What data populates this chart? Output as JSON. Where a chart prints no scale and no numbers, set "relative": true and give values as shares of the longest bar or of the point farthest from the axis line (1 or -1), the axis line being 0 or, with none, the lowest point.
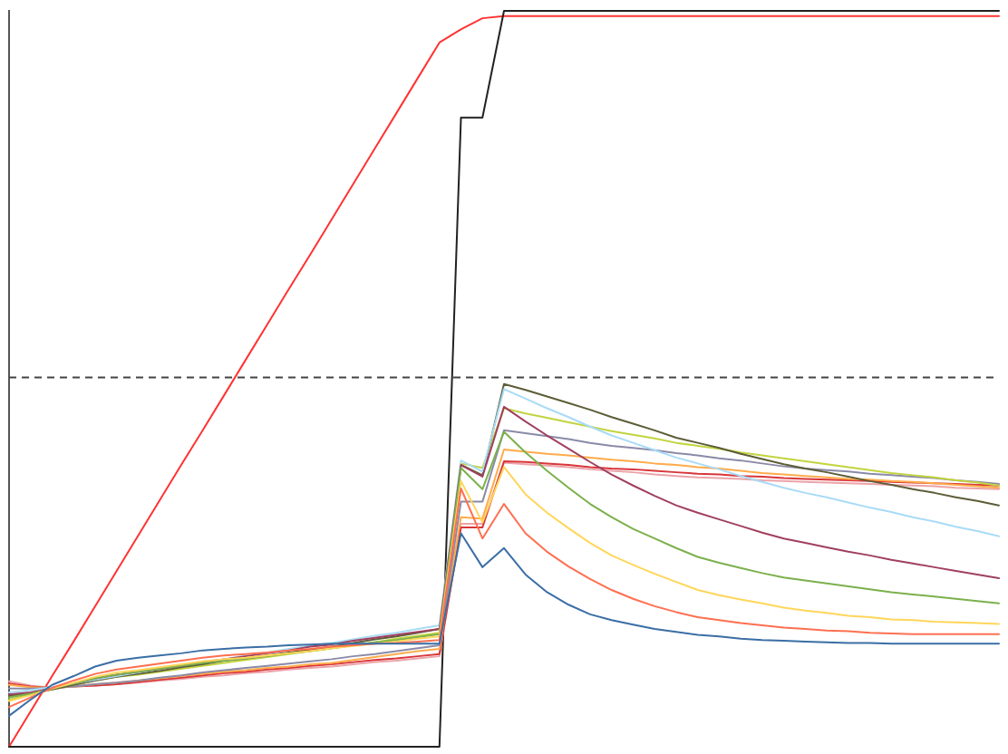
{
  "chart_data": {
    "type": "line",
    "relative": true,
    "legend": false,
    "marker": "none",
    "line_style": "solid",
    "categories": [
      null,
      null,
      null,
      null,
      null,
      null,
      null,
      null,
      null,
      null,
      null,
      null,
      null,
      null,
      null,
      null,
      null,
      null,
      null,
      null,
      null,
      null,
      null,
      null,
      null,
      null,
      null,
      null,
      null,
      null,
      null,
      null,
      null,
      null,
      null,
      null,
      null,
      null,
      null,
      null,
      null,
      null,
      null,
      null,
      null,
      null,
      null
    ],
    "series": [
      {
        "color": "#3a6ea5",
        "values": [
          0.042,
          0.064,
          0.084,
          0.096,
          0.109,
          0.117,
          0.121,
          0.124,
          0.127,
          0.131,
          0.133,
          0.135,
          0.136,
          0.138,
          0.139,
          0.14,
          0.14,
          0.14,
          0.14,
          0.14,
          0.14,
          0.29,
          0.244,
          0.27,
          0.234,
          0.21,
          0.193,
          0.18,
          0.172,
          0.166,
          0.16,
          0.156,
          0.152,
          0.15,
          0.147,
          0.145,
          0.144,
          0.143,
          0.142,
          0.141,
          0.141,
          0.14,
          0.14,
          0.14,
          0.14,
          0.14,
          0.14
        ]
      },
      {
        "color": "#ff6f50",
        "values": [
          0.054,
          0.067,
          0.08,
          0.09,
          0.099,
          0.105,
          0.109,
          0.113,
          0.117,
          0.121,
          0.124,
          0.126,
          0.128,
          0.131,
          0.133,
          0.136,
          0.138,
          0.14,
          0.141,
          0.143,
          0.145,
          0.351,
          0.283,
          0.33,
          0.29,
          0.265,
          0.245,
          0.228,
          0.213,
          0.201,
          0.191,
          0.183,
          0.176,
          0.172,
          0.168,
          0.165,
          0.162,
          0.16,
          0.158,
          0.157,
          0.155,
          0.154,
          0.153,
          0.153,
          0.153,
          0.153,
          0.153
        ]
      },
      {
        "color": "#ffd65a",
        "values": [
          0.062,
          0.07,
          0.079,
          0.087,
          0.095,
          0.101,
          0.104,
          0.108,
          0.112,
          0.116,
          0.119,
          0.121,
          0.124,
          0.127,
          0.13,
          0.134,
          0.137,
          0.14,
          0.143,
          0.147,
          0.15,
          0.361,
          0.305,
          0.38,
          0.343,
          0.318,
          0.297,
          0.277,
          0.26,
          0.247,
          0.235,
          0.224,
          0.213,
          0.206,
          0.2,
          0.195,
          0.189,
          0.185,
          0.182,
          0.178,
          0.176,
          0.173,
          0.172,
          0.17,
          0.169,
          0.168,
          0.167
        ]
      },
      {
        "color": "#7cb04c",
        "values": [
          0.067,
          0.072,
          0.079,
          0.086,
          0.093,
          0.098,
          0.102,
          0.106,
          0.11,
          0.114,
          0.117,
          0.12,
          0.123,
          0.127,
          0.13,
          0.134,
          0.138,
          0.142,
          0.145,
          0.149,
          0.153,
          0.379,
          0.35,
          0.428,
          0.4,
          0.375,
          0.352,
          0.33,
          0.312,
          0.296,
          0.283,
          0.27,
          0.258,
          0.25,
          0.243,
          0.236,
          0.23,
          0.226,
          0.222,
          0.218,
          0.214,
          0.21,
          0.207,
          0.204,
          0.201,
          0.198,
          0.195
        ]
      },
      {
        "color": "#a0405e",
        "values": [
          0.071,
          0.074,
          0.079,
          0.086,
          0.093,
          0.098,
          0.102,
          0.106,
          0.11,
          0.115,
          0.119,
          0.123,
          0.127,
          0.131,
          0.136,
          0.139,
          0.144,
          0.148,
          0.152,
          0.156,
          0.16,
          0.383,
          0.367,
          0.462,
          0.442,
          0.423,
          0.405,
          0.387,
          0.37,
          0.355,
          0.341,
          0.328,
          0.318,
          0.309,
          0.3,
          0.291,
          0.283,
          0.277,
          0.271,
          0.265,
          0.26,
          0.254,
          0.249,
          0.244,
          0.239,
          0.234,
          0.229
        ]
      },
      {
        "color": "#a9dbf7",
        "values": [
          0.074,
          0.077,
          0.081,
          0.086,
          0.091,
          0.096,
          0.101,
          0.106,
          0.111,
          0.116,
          0.119,
          0.124,
          0.128,
          0.133,
          0.137,
          0.141,
          0.146,
          0.151,
          0.155,
          0.16,
          0.165,
          0.389,
          0.374,
          0.486,
          0.473,
          0.46,
          0.448,
          0.435,
          0.423,
          0.413,
          0.403,
          0.393,
          0.385,
          0.377,
          0.368,
          0.36,
          0.352,
          0.345,
          0.339,
          0.332,
          0.325,
          0.319,
          0.312,
          0.306,
          0.299,
          0.293,
          0.286
        ]
      },
      {
        "color": "#5d5d38",
        "values": [
          0.069,
          0.073,
          0.078,
          0.084,
          0.09,
          0.095,
          0.099,
          0.103,
          0.108,
          0.112,
          0.117,
          0.12,
          0.124,
          0.128,
          0.132,
          0.136,
          0.141,
          0.146,
          0.15,
          0.155,
          0.16,
          0.383,
          0.369,
          0.493,
          0.485,
          0.476,
          0.467,
          0.458,
          0.448,
          0.439,
          0.43,
          0.42,
          0.413,
          0.406,
          0.398,
          0.391,
          0.384,
          0.378,
          0.373,
          0.367,
          0.361,
          0.356,
          0.35,
          0.345,
          0.339,
          0.334,
          0.328
        ]
      },
      {
        "color": "#c2d43f",
        "values": [
          0.064,
          0.071,
          0.078,
          0.084,
          0.09,
          0.095,
          0.098,
          0.102,
          0.106,
          0.11,
          0.114,
          0.118,
          0.122,
          0.126,
          0.13,
          0.134,
          0.138,
          0.142,
          0.147,
          0.151,
          0.155,
          0.385,
          0.379,
          0.46,
          0.453,
          0.447,
          0.441,
          0.435,
          0.429,
          0.424,
          0.419,
          0.413,
          0.409,
          0.405,
          0.4,
          0.396,
          0.392,
          0.388,
          0.384,
          0.38,
          0.376,
          0.372,
          0.369,
          0.366,
          0.362,
          0.359,
          0.355
        ]
      },
      {
        "color": "#8a8aa8",
        "values": [
          0.079,
          0.079,
          0.08,
          0.082,
          0.085,
          0.087,
          0.09,
          0.094,
          0.097,
          0.101,
          0.104,
          0.107,
          0.11,
          0.113,
          0.116,
          0.119,
          0.123,
          0.126,
          0.13,
          0.134,
          0.138,
          0.333,
          0.333,
          0.43,
          0.426,
          0.422,
          0.418,
          0.413,
          0.409,
          0.406,
          0.403,
          0.399,
          0.396,
          0.392,
          0.389,
          0.385,
          0.381,
          0.378,
          0.376,
          0.374,
          0.371,
          0.369,
          0.367,
          0.365,
          0.362,
          0.36,
          0.357
        ]
      },
      {
        "color": "#ffab4a",
        "values": [
          0.084,
          0.081,
          0.08,
          0.082,
          0.085,
          0.087,
          0.09,
          0.093,
          0.096,
          0.099,
          0.102,
          0.104,
          0.107,
          0.109,
          0.112,
          0.114,
          0.118,
          0.122,
          0.126,
          0.13,
          0.133,
          0.312,
          0.31,
          0.404,
          0.401,
          0.398,
          0.396,
          0.393,
          0.39,
          0.388,
          0.385,
          0.383,
          0.38,
          0.378,
          0.375,
          0.372,
          0.37,
          0.368,
          0.366,
          0.364,
          0.363,
          0.361,
          0.36,
          0.358,
          0.356,
          0.354,
          0.352
        ]
      },
      {
        "color": "#d8353a",
        "values": [
          0.086,
          0.082,
          0.08,
          0.082,
          0.083,
          0.085,
          0.088,
          0.091,
          0.094,
          0.097,
          0.1,
          0.102,
          0.105,
          0.107,
          0.11,
          0.112,
          0.115,
          0.118,
          0.12,
          0.123,
          0.126,
          0.298,
          0.298,
          0.388,
          0.387,
          0.385,
          0.383,
          0.38,
          0.378,
          0.377,
          0.375,
          0.373,
          0.371,
          0.37,
          0.368,
          0.367,
          0.365,
          0.364,
          0.363,
          0.362,
          0.361,
          0.36,
          0.359,
          0.358,
          0.357,
          0.356,
          0.355
        ]
      },
      {
        "color": "#eba3a8",
        "values": [
          0.089,
          0.083,
          0.08,
          0.082,
          0.083,
          0.085,
          0.087,
          0.09,
          0.092,
          0.095,
          0.097,
          0.1,
          0.102,
          0.105,
          0.107,
          0.109,
          0.112,
          0.115,
          0.117,
          0.12,
          0.123,
          0.303,
          0.303,
          0.386,
          0.384,
          0.382,
          0.38,
          0.377,
          0.375,
          0.373,
          0.37,
          0.368,
          0.366,
          0.365,
          0.364,
          0.362,
          0.361,
          0.36,
          0.359,
          0.358,
          0.357,
          0.356,
          0.355,
          0.354,
          0.352,
          0.351,
          0.35
        ]
      },
      {
        "color": "#222222",
        "values": [
          0,
          0,
          0,
          0,
          0,
          0,
          0,
          0,
          0,
          0,
          0,
          0,
          0,
          0,
          0,
          0,
          0,
          0,
          0,
          0,
          0,
          0.855,
          0.855,
          1,
          1,
          1,
          1,
          1,
          1,
          1,
          1,
          1,
          1,
          1,
          1,
          1,
          1,
          1,
          1,
          1,
          1,
          1,
          1,
          1,
          1,
          1,
          1
        ]
      },
      {
        "color": "#ff3333",
        "values": [
          0,
          0.048,
          0.096,
          0.143,
          0.191,
          0.239,
          0.287,
          0.335,
          0.383,
          0.43,
          0.478,
          0.526,
          0.574,
          0.622,
          0.669,
          0.717,
          0.765,
          0.813,
          0.861,
          0.909,
          0.957,
          0.975,
          0.99,
          0.993,
          0.993,
          0.993,
          0.993,
          0.993,
          0.993,
          0.993,
          0.993,
          0.993,
          0.993,
          0.993,
          0.993,
          0.993,
          0.993,
          0.993,
          0.993,
          0.993,
          0.993,
          0.993,
          0.993,
          0.993,
          0.993,
          0.993,
          0.993
        ]
      }
    ],
    "ref_lines": [
      {
        "axis": "y",
        "value": 0.502,
        "color": "#444444",
        "line_style": "dashed"
      }
    ]
  }
}
